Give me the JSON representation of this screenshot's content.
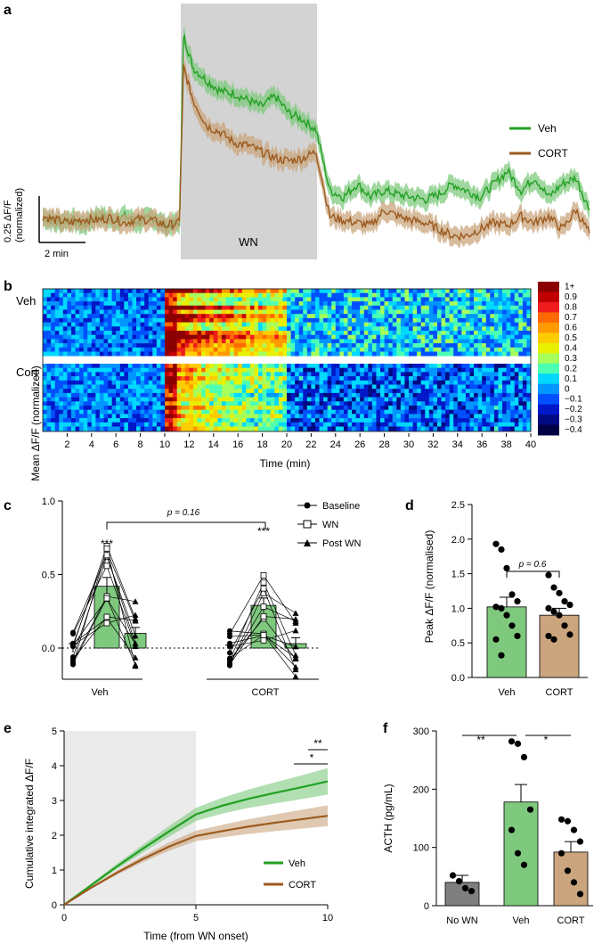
{
  "panels": {
    "a": {
      "label": "a"
    },
    "b": {
      "label": "b"
    },
    "c": {
      "label": "c"
    },
    "d": {
      "label": "d"
    },
    "e": {
      "label": "e"
    },
    "f": {
      "label": "f"
    }
  },
  "colors": {
    "veh": "#22a022",
    "cort": "#9c5a1e",
    "veh_fill": "#7fc97f",
    "cort_fill": "#caa57e",
    "gray": "#7f7f7f",
    "shade": "#d3d3d3"
  },
  "chart_data": [
    {
      "panel": "a",
      "type": "line",
      "wn_label": "WN",
      "scale_bar": {
        "y_label": "0.25 ΔF/F",
        "y_label_sub": "(normalized)",
        "x_label": "2 min"
      },
      "time_range_min": [
        0,
        40
      ],
      "wn_window_min": [
        10,
        20
      ],
      "series": [
        {
          "name": "Veh",
          "x": [
            0,
            1,
            2,
            3,
            4,
            5,
            6,
            7,
            8,
            9,
            10,
            10.3,
            11,
            12,
            13,
            14,
            15,
            16,
            17,
            18,
            19,
            20,
            21,
            22,
            23,
            24,
            25,
            26,
            27,
            28,
            29,
            30,
            31,
            32,
            33,
            34,
            35,
            36,
            37,
            38,
            39,
            40
          ],
          "y": [
            0.05,
            0.0,
            0.03,
            -0.02,
            0.06,
            0.02,
            0.05,
            0.0,
            0.04,
            -0.02,
            0.0,
            1.45,
            1.2,
            1.1,
            1.02,
            1.0,
            0.95,
            0.9,
            0.98,
            0.85,
            0.8,
            0.72,
            0.25,
            0.2,
            0.3,
            0.2,
            0.25,
            0.22,
            0.2,
            0.18,
            0.22,
            0.3,
            0.25,
            0.2,
            0.3,
            0.4,
            0.25,
            0.35,
            0.2,
            0.3,
            0.35,
            0.1
          ]
        },
        {
          "name": "CORT",
          "x": [
            0,
            1,
            2,
            3,
            4,
            5,
            6,
            7,
            8,
            9,
            10,
            10.3,
            11,
            12,
            13,
            14,
            15,
            16,
            17,
            18,
            19,
            20,
            21,
            22,
            23,
            24,
            25,
            26,
            27,
            28,
            29,
            30,
            31,
            32,
            33,
            34,
            35,
            36,
            37,
            38,
            39,
            40
          ],
          "y": [
            0.05,
            0.02,
            0.0,
            0.03,
            0.02,
            0.04,
            0.0,
            0.03,
            0.02,
            -0.02,
            0.0,
            1.2,
            0.95,
            0.75,
            0.7,
            0.62,
            0.6,
            0.55,
            0.5,
            0.48,
            0.5,
            0.55,
            0.05,
            0.02,
            0.0,
            -0.02,
            0.1,
            0.05,
            0.02,
            0.0,
            -0.05,
            -0.1,
            -0.1,
            -0.05,
            0.0,
            -0.02,
            0.05,
            0.0,
            0.05,
            -0.05,
            0.1,
            -0.08
          ]
        }
      ]
    },
    {
      "panel": "b",
      "type": "heatmap",
      "row_groups": [
        "Veh",
        "Cort"
      ],
      "xlabel": "Time (min)",
      "xticks": [
        2,
        4,
        6,
        8,
        10,
        12,
        14,
        16,
        18,
        20,
        22,
        24,
        26,
        28,
        30,
        32,
        34,
        36,
        38,
        40
      ],
      "colorbar_labels": [
        "1+",
        "0.9",
        "0.8",
        "0.7",
        "0.6",
        "0.5",
        "0.4",
        "0.3",
        "0.2",
        "0.1",
        "0",
        "−0.1",
        "−0.2",
        "−0.3",
        "−0.4"
      ],
      "colorbar_colors": [
        "#8b0000",
        "#c00000",
        "#ee1c1c",
        "#ff6a00",
        "#ff9a00",
        "#ffcc00",
        "#e8f000",
        "#a6ff5a",
        "#4cffb3",
        "#00d8ff",
        "#0096ff",
        "#0050ff",
        "#0018c8",
        "#000a82",
        "#000045"
      ]
    },
    {
      "panel": "c",
      "type": "bar",
      "ylabel": "Mean ΔF/F (normalized)",
      "ylim": [
        -0.2,
        1.0
      ],
      "yticks": [
        "0.0",
        "0.5",
        "1.0"
      ],
      "categories": [
        "Veh",
        "CORT"
      ],
      "legend": [
        "Baseline",
        "WN",
        "Post WN"
      ],
      "bracket_label": "p = 0.16",
      "stars": [
        "***",
        "***"
      ],
      "means": {
        "Veh": [
          0.0,
          0.42,
          0.1
        ],
        "CORT": [
          0.0,
          0.29,
          0.03
        ]
      },
      "sem": {
        "Veh": [
          0.03,
          0.06,
          0.04
        ],
        "CORT": [
          0.02,
          0.05,
          0.04
        ]
      }
    },
    {
      "panel": "d",
      "type": "bar",
      "ylabel": "Peak ΔF/F (normalised)",
      "ylim": [
        0,
        2.5
      ],
      "yticks": [
        "0.0",
        "0.5",
        "1.0",
        "1.5",
        "2.0",
        "2.5"
      ],
      "categories": [
        "Veh",
        "CORT"
      ],
      "values": [
        1.02,
        0.9
      ],
      "sem": [
        0.14,
        0.1
      ],
      "points": {
        "Veh": [
          1.93,
          1.85,
          1.58,
          1.2,
          1.1,
          1.02,
          1.0,
          0.9,
          0.75,
          0.6,
          0.55,
          0.32
        ],
        "CORT": [
          1.48,
          1.3,
          1.22,
          1.1,
          1.05,
          1.0,
          0.95,
          0.9,
          0.75,
          0.62,
          0.6,
          0.55
        ]
      },
      "bracket_label": "p = 0.6"
    },
    {
      "panel": "e",
      "type": "line",
      "ylabel": "Cumulative integrated ΔF/F",
      "xlabel": "Time (from WN onset)",
      "xlim": [
        0,
        10
      ],
      "ylim": [
        0,
        5
      ],
      "xticks": [
        "0",
        "5",
        "10"
      ],
      "yticks": [
        "0",
        "1",
        "2",
        "3",
        "4",
        "5"
      ],
      "shade_range": [
        0,
        5
      ],
      "stars": [
        "**",
        "*"
      ],
      "series": [
        {
          "name": "Veh",
          "x": [
            0,
            1,
            2,
            3,
            4,
            5,
            6,
            7,
            8,
            9,
            10
          ],
          "y": [
            0,
            0.55,
            1.1,
            1.62,
            2.12,
            2.6,
            2.85,
            3.05,
            3.22,
            3.38,
            3.55
          ],
          "band": 0.38
        },
        {
          "name": "CORT",
          "x": [
            0,
            1,
            2,
            3,
            4,
            5,
            6,
            7,
            8,
            9,
            10
          ],
          "y": [
            0,
            0.48,
            0.92,
            1.32,
            1.68,
            1.98,
            2.12,
            2.25,
            2.36,
            2.46,
            2.56
          ],
          "band": 0.3
        }
      ]
    },
    {
      "panel": "f",
      "type": "bar",
      "ylabel": "ACTH (pg/mL)",
      "ylim": [
        0,
        300
      ],
      "yticks": [
        "0",
        "100",
        "200",
        "300"
      ],
      "categories": [
        "No WN",
        "Veh",
        "CORT"
      ],
      "values": [
        40,
        178,
        92
      ],
      "sem": [
        12,
        30,
        18
      ],
      "points": {
        "No WN": [
          52,
          42,
          30,
          25
        ],
        "Veh": [
          282,
          278,
          255,
          165,
          130,
          90,
          70
        ],
        "CORT": [
          148,
          145,
          130,
          110,
          90,
          60,
          40,
          20
        ]
      },
      "stars": [
        "**",
        "*"
      ]
    }
  ]
}
